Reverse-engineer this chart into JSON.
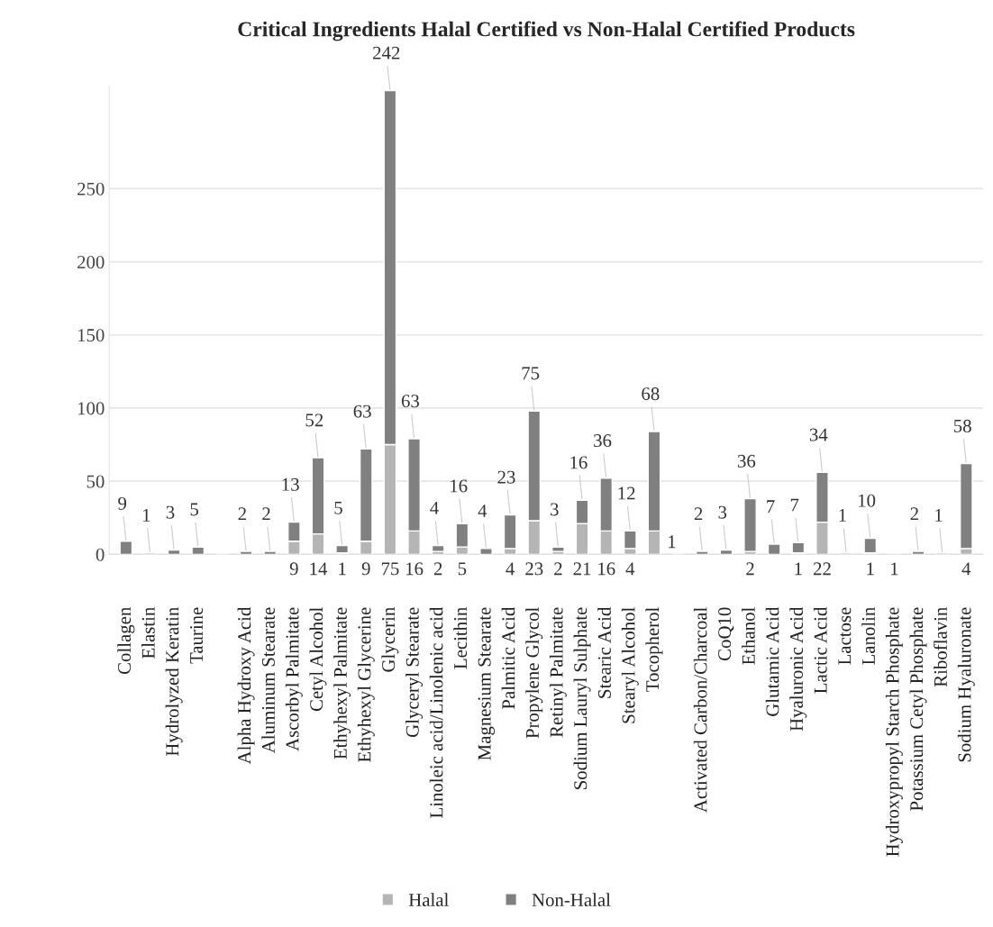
{
  "chart_data": {
    "type": "bar",
    "title": "Critical Ingredients Halal Certified vs Non-Halal Certified Products",
    "categories": [
      "Collagen",
      "Elastin",
      "Hydrolyzed Keratin",
      "Taurine",
      null,
      "Alpha Hydroxy Acid",
      "Aluminum Stearate",
      "Ascorbyl Palmitate",
      "Cetyl Alcohol",
      "Ethyhexyl Palmitate",
      "Ethyhexyl Glycerine",
      "Glycerin",
      "Glyceryl Stearate",
      "Linoleic acid/Linolenic acid",
      "Lecithin",
      "Magnesium Stearate",
      "Palmitic Acid",
      "Propylene Glycol",
      "Retinyl Palmitate",
      "Sodium Lauryl Sulphate",
      "Stearic Acid",
      "Stearyl Alcohol",
      "Tocopherol",
      null,
      "Activated Carbon/Charcoal",
      "CoQ10",
      "Ethanol",
      "Glutamic Acid",
      "Hyaluronic Acid",
      "Lactic Acid",
      "Lactose",
      "Lanolin",
      "Hydroxypropyl Starch Phosphate",
      "Potassium Cetyl Phosphate",
      "Riboflavin",
      "Sodium Hyaluronate"
    ],
    "stacked": true,
    "series": [
      {
        "name": "Halal",
        "color": "#b5b5b5",
        "values": [
          null,
          null,
          null,
          null,
          null,
          null,
          null,
          9,
          14,
          1,
          9,
          75,
          16,
          2,
          5,
          null,
          4,
          23,
          2,
          21,
          16,
          4,
          16,
          null,
          null,
          null,
          2,
          null,
          1,
          22,
          null,
          1,
          1,
          null,
          null,
          4
        ],
        "value_labels": [
          null,
          null,
          null,
          null,
          null,
          null,
          null,
          "9",
          "14",
          "1",
          "9",
          "75",
          "16",
          "2",
          "5",
          null,
          "4",
          "23",
          "2",
          "21",
          "16",
          "4",
          null,
          null,
          null,
          null,
          "2",
          null,
          "1",
          "22",
          null,
          "1",
          "1",
          null,
          null,
          "4"
        ]
      },
      {
        "name": "Non-Halal",
        "color": "#808080",
        "values": [
          9,
          1,
          3,
          5,
          null,
          2,
          2,
          13,
          52,
          5,
          63,
          242,
          63,
          4,
          16,
          4,
          23,
          75,
          3,
          16,
          36,
          12,
          68,
          null,
          2,
          3,
          36,
          7,
          7,
          34,
          1,
          10,
          null,
          2,
          1,
          58
        ],
        "value_labels": [
          "9",
          "1",
          "3",
          "5",
          null,
          "2",
          "2",
          "13",
          "52",
          "5",
          "63",
          "242",
          "63",
          "4",
          "16",
          "4",
          "23",
          "75",
          "3",
          "16",
          "36",
          "12",
          "68",
          null,
          "2",
          "3",
          "36",
          "7",
          "7",
          "34",
          "1",
          "10",
          null,
          "2",
          "1",
          "58"
        ]
      }
    ],
    "annotations": [
      {
        "text": "1",
        "x": "Tocopherol",
        "y": 0
      }
    ],
    "ylim": [
      0,
      320
    ],
    "yticks": [
      0,
      50,
      100,
      150,
      200,
      250
    ],
    "grid": "y",
    "legend": "bottom"
  }
}
